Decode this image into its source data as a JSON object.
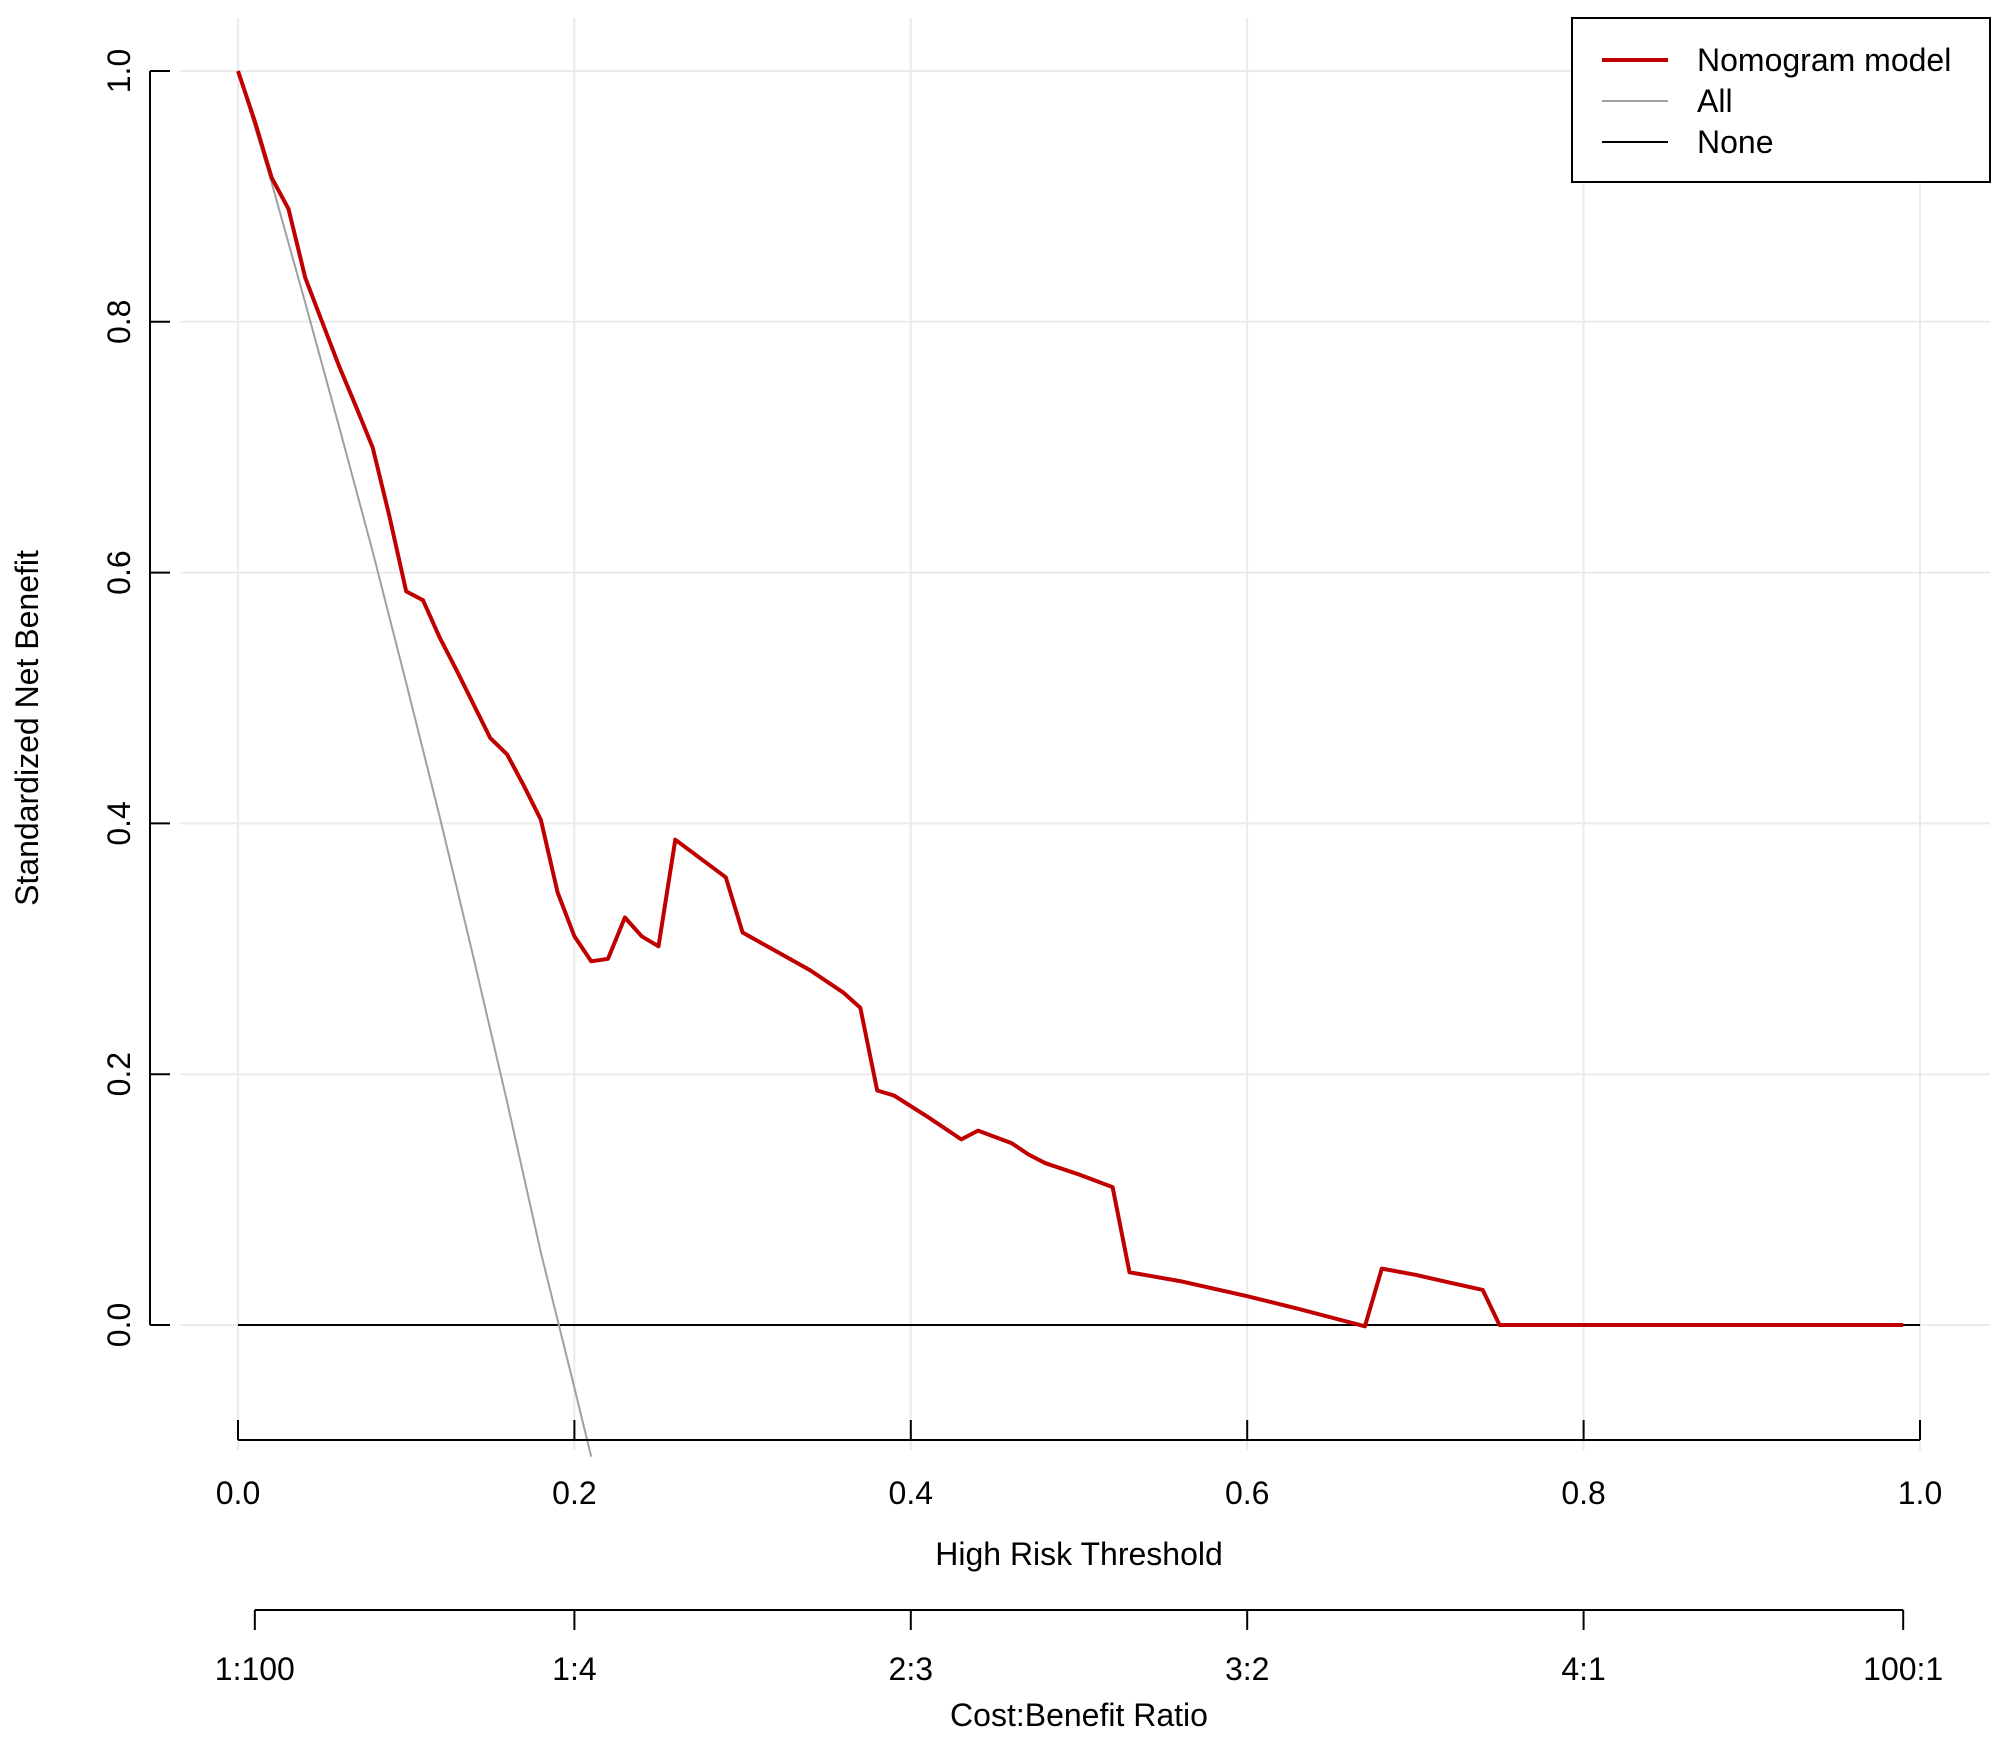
{
  "chart_data": {
    "type": "line",
    "title": "",
    "xlabel": "High Risk Threshold",
    "ylabel": "Standardized Net Benefit",
    "xlim": [
      0,
      1
    ],
    "ylim": [
      -0.1,
      1
    ],
    "grid": true,
    "x_ticks": [
      0.0,
      0.2,
      0.4,
      0.6,
      0.8,
      1.0
    ],
    "x_tick_labels": [
      "0.0",
      "0.2",
      "0.4",
      "0.6",
      "0.8",
      "1.0"
    ],
    "y_ticks": [
      0.0,
      0.2,
      0.4,
      0.6,
      0.8,
      1.0
    ],
    "y_tick_labels": [
      "0.0",
      "0.2",
      "0.4",
      "0.6",
      "0.8",
      "1.0"
    ],
    "secondary_axis": {
      "label": "Cost:Benefit Ratio",
      "ticks": [
        0.01,
        0.2,
        0.4,
        0.6,
        0.8,
        0.99
      ],
      "tick_labels": [
        "1:100",
        "1:4",
        "2:3",
        "3:2",
        "4:1",
        "100:1"
      ]
    },
    "legend": {
      "position": "top-right",
      "entries": [
        "Nomogram model",
        "All",
        "None"
      ]
    },
    "colors": {
      "model": "#c00000",
      "all": "#a0a0a0",
      "none": "#000000",
      "grid": "#ebebeb"
    },
    "series": [
      {
        "name": "Nomogram model",
        "x": [
          0.0,
          0.01,
          0.02,
          0.03,
          0.04,
          0.05,
          0.06,
          0.07,
          0.08,
          0.09,
          0.1,
          0.11,
          0.12,
          0.13,
          0.14,
          0.15,
          0.16,
          0.17,
          0.18,
          0.19,
          0.2,
          0.21,
          0.22,
          0.23,
          0.24,
          0.25,
          0.26,
          0.27,
          0.28,
          0.29,
          0.3,
          0.32,
          0.34,
          0.36,
          0.37,
          0.38,
          0.39,
          0.41,
          0.43,
          0.44,
          0.46,
          0.47,
          0.48,
          0.5,
          0.52,
          0.53,
          0.56,
          0.6,
          0.63,
          0.65,
          0.67,
          0.68,
          0.7,
          0.72,
          0.74,
          0.75,
          0.8,
          0.85,
          0.9,
          0.95,
          0.99
        ],
        "y": [
          1.0,
          0.96,
          0.915,
          0.89,
          0.835,
          0.8,
          0.765,
          0.733,
          0.7,
          0.645,
          0.585,
          0.578,
          0.548,
          0.522,
          0.495,
          0.468,
          0.455,
          0.43,
          0.403,
          0.345,
          0.31,
          0.29,
          0.292,
          0.325,
          0.31,
          0.302,
          0.387,
          0.377,
          0.367,
          0.357,
          0.313,
          0.298,
          0.283,
          0.265,
          0.253,
          0.187,
          0.183,
          0.166,
          0.148,
          0.155,
          0.145,
          0.136,
          0.129,
          0.12,
          0.11,
          0.042,
          0.035,
          0.023,
          0.013,
          0.006,
          -0.001,
          0.045,
          0.04,
          0.034,
          0.028,
          0.0,
          0.0,
          0.0,
          0.0,
          0.0,
          0.0
        ]
      },
      {
        "name": "All",
        "x": [
          0.0,
          0.02,
          0.04,
          0.06,
          0.08,
          0.1,
          0.12,
          0.14,
          0.16,
          0.18,
          0.2,
          0.21
        ],
        "y": [
          1.0,
          0.911,
          0.815,
          0.717,
          0.617,
          0.512,
          0.405,
          0.293,
          0.178,
          0.058,
          -0.05,
          -0.105
        ]
      },
      {
        "name": "None",
        "x": [
          0.0,
          1.0
        ],
        "y": [
          0.0,
          0.0
        ]
      }
    ]
  }
}
